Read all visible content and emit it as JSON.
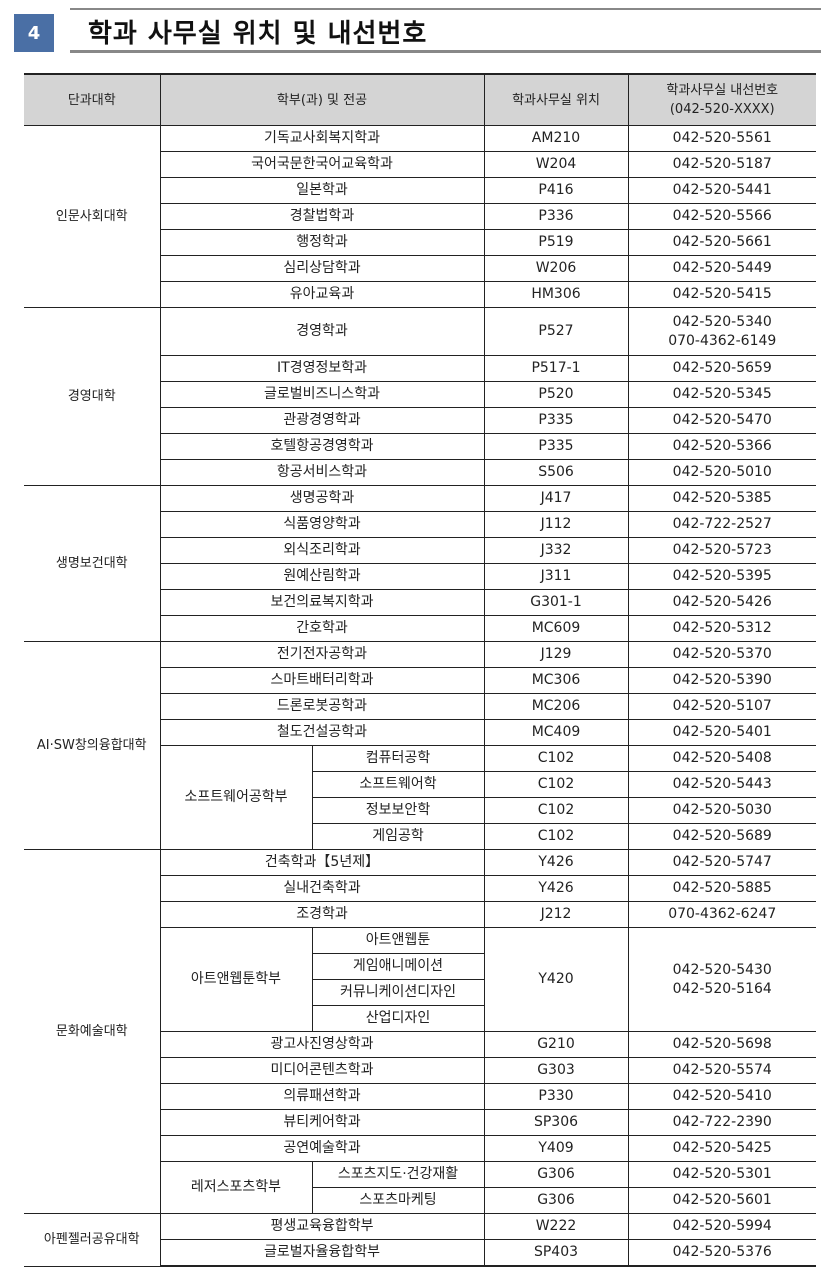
{
  "section": {
    "number": "4",
    "title": "학과 사무실 위치 및 내선번호"
  },
  "headers": [
    "단과대학",
    "학부(과) 및 전공",
    "학과사무실 위치",
    "학과사무실 내선번호",
    "(042-520-XXXX)"
  ],
  "colleges": [
    {
      "name": "인문사회대학",
      "items": [
        {
          "name": "기독교사회복지학과",
          "office": "AM210",
          "phone": [
            "042-520-5561"
          ]
        },
        {
          "name": "국어국문한국어교육학과",
          "office": "W204",
          "phone": [
            "042-520-5187"
          ]
        },
        {
          "name": "일본학과",
          "office": "P416",
          "phone": [
            "042-520-5441"
          ]
        },
        {
          "name": "경찰법학과",
          "office": "P336",
          "phone": [
            "042-520-5566"
          ]
        },
        {
          "name": "행정학과",
          "office": "P519",
          "phone": [
            "042-520-5661"
          ]
        },
        {
          "name": "심리상담학과",
          "office": "W206",
          "phone": [
            "042-520-5449"
          ]
        },
        {
          "name": "유아교육과",
          "office": "HM306",
          "phone": [
            "042-520-5415"
          ]
        }
      ]
    },
    {
      "name": "경영대학",
      "items": [
        {
          "name": "경영학과",
          "office": "P527",
          "phone": [
            "042-520-5340",
            "070-4362-6149"
          ]
        },
        {
          "name": "IT경영정보학과",
          "office": "P517-1",
          "phone": [
            "042-520-5659"
          ]
        },
        {
          "name": "글로벌비즈니스학과",
          "office": "P520",
          "phone": [
            "042-520-5345"
          ]
        },
        {
          "name": "관광경영학과",
          "office": "P335",
          "phone": [
            "042-520-5470"
          ]
        },
        {
          "name": "호텔항공경영학과",
          "office": "P335",
          "phone": [
            "042-520-5366"
          ]
        },
        {
          "name": "항공서비스학과",
          "office": "S506",
          "phone": [
            "042-520-5010"
          ]
        }
      ]
    },
    {
      "name": "생명보건대학",
      "items": [
        {
          "name": "생명공학과",
          "office": "J417",
          "phone": [
            "042-520-5385"
          ]
        },
        {
          "name": "식품영양학과",
          "office": "J112",
          "phone": [
            "042-722-2527"
          ]
        },
        {
          "name": "외식조리학과",
          "office": "J332",
          "phone": [
            "042-520-5723"
          ]
        },
        {
          "name": "원예산림학과",
          "office": "J311",
          "phone": [
            "042-520-5395"
          ]
        },
        {
          "name": "보건의료복지학과",
          "office": "G301-1",
          "phone": [
            "042-520-5426"
          ]
        },
        {
          "name": "간호학과",
          "office": "MC609",
          "phone": [
            "042-520-5312"
          ]
        }
      ]
    },
    {
      "name": "AI·SW창의융합대학",
      "items": [
        {
          "name": "전기전자공학과",
          "office": "J129",
          "phone": [
            "042-520-5370"
          ]
        },
        {
          "name": "스마트배터리학과",
          "office": "MC306",
          "phone": [
            "042-520-5390"
          ]
        },
        {
          "name": "드론로봇공학과",
          "office": "MC206",
          "phone": [
            "042-520-5107"
          ]
        },
        {
          "name": "철도건설공학과",
          "office": "MC409",
          "phone": [
            "042-520-5401"
          ]
        },
        {
          "name": "소프트웨어공학부",
          "majors": [
            {
              "name": "컴퓨터공학",
              "office": "C102",
              "phone": [
                "042-520-5408"
              ]
            },
            {
              "name": "소프트웨어학",
              "office": "C102",
              "phone": [
                "042-520-5443"
              ]
            },
            {
              "name": "정보보안학",
              "office": "C102",
              "phone": [
                "042-520-5030"
              ]
            },
            {
              "name": "게임공학",
              "office": "C102",
              "phone": [
                "042-520-5689"
              ]
            }
          ]
        }
      ]
    },
    {
      "name": "문화예술대학",
      "items": [
        {
          "name": "건축학과【5년제】",
          "office": "Y426",
          "phone": [
            "042-520-5747"
          ]
        },
        {
          "name": "실내건축학과",
          "office": "Y426",
          "phone": [
            "042-520-5885"
          ]
        },
        {
          "name": "조경학과",
          "office": "J212",
          "phone": [
            "070-4362-6247"
          ]
        },
        {
          "name": "아트앤웹툰학부",
          "shared": {
            "office": "Y420",
            "phone": [
              "042-520-5430",
              "042-520-5164"
            ]
          },
          "majors": [
            {
              "name": "아트앤웹툰"
            },
            {
              "name": "게임애니메이션"
            },
            {
              "name": "커뮤니케이션디자인"
            },
            {
              "name": "산업디자인"
            }
          ]
        },
        {
          "name": "광고사진영상학과",
          "office": "G210",
          "phone": [
            "042-520-5698"
          ]
        },
        {
          "name": "미디어콘텐츠학과",
          "office": "G303",
          "phone": [
            "042-520-5574"
          ]
        },
        {
          "name": "의류패션학과",
          "office": "P330",
          "phone": [
            "042-520-5410"
          ]
        },
        {
          "name": "뷰티케어학과",
          "office": "SP306",
          "phone": [
            "042-722-2390"
          ]
        },
        {
          "name": "공연예술학과",
          "office": "Y409",
          "phone": [
            "042-520-5425"
          ]
        },
        {
          "name": "레저스포츠학부",
          "majors": [
            {
              "name": "스포츠지도·건강재활",
              "office": "G306",
              "phone": [
                "042-520-5301"
              ]
            },
            {
              "name": "스포츠마케팅",
              "office": "G306",
              "phone": [
                "042-520-5601"
              ]
            }
          ]
        }
      ]
    },
    {
      "name": "아펜젤러공유대학",
      "items": [
        {
          "name": "평생교육융합학부",
          "office": "W222",
          "phone": [
            "042-520-5994"
          ]
        },
        {
          "name": "글로벌자율융합학부",
          "office": "SP403",
          "phone": [
            "042-520-5376"
          ]
        }
      ]
    }
  ]
}
